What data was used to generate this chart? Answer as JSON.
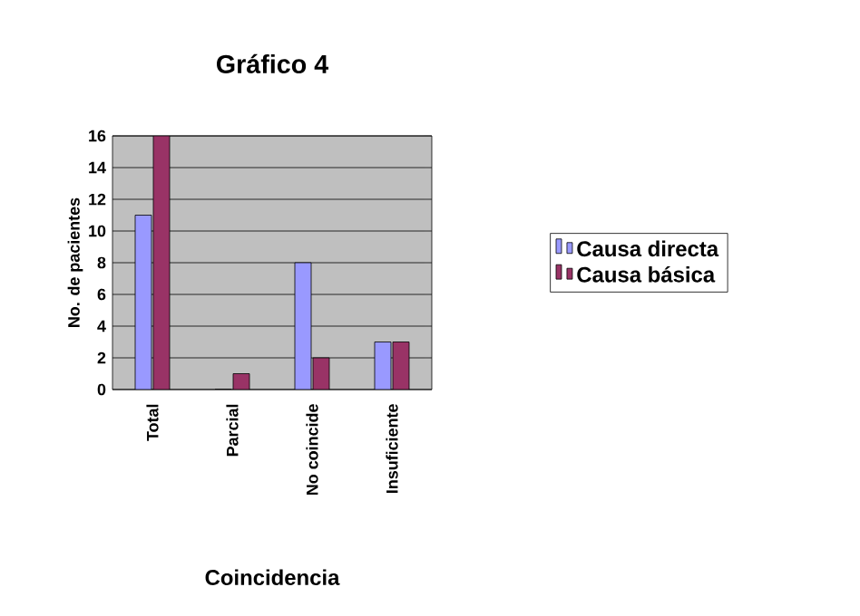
{
  "chart_data": {
    "type": "bar",
    "title": "Gráfico 4",
    "xlabel": "Coincidencia",
    "ylabel": "No. de pacientes",
    "categories": [
      "Total",
      "Parcial",
      "No coincide",
      "Insuficiente"
    ],
    "series": [
      {
        "name": "Causa directa",
        "color": "#9999ff",
        "values": [
          11,
          0,
          8,
          3
        ]
      },
      {
        "name": "Causa básica",
        "color": "#993366",
        "values": [
          16,
          1,
          2,
          3
        ]
      }
    ],
    "ylim": [
      0,
      16
    ],
    "yticks": [
      0,
      2,
      4,
      6,
      8,
      10,
      12,
      14,
      16
    ],
    "grid": "y",
    "legend": "right"
  }
}
